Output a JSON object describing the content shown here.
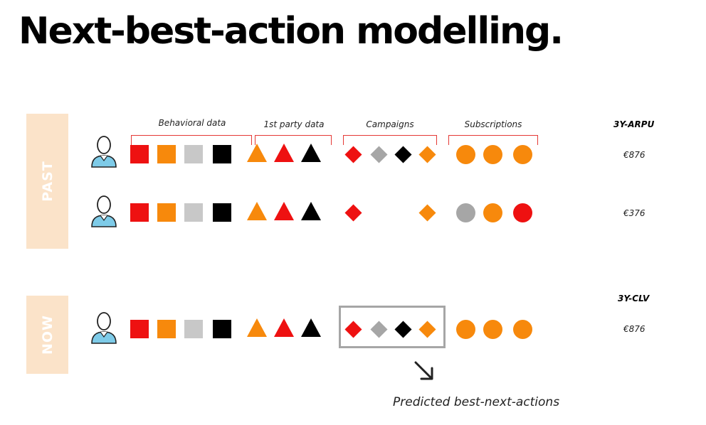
{
  "title": "Next-best-action modelling.",
  "bands": [
    {
      "label": "PAST"
    },
    {
      "label": "NOW"
    }
  ],
  "column_headers": [
    {
      "label": "Behavioral data"
    },
    {
      "label": "1st party data"
    },
    {
      "label": "Campaigns"
    },
    {
      "label": "Subscriptions"
    }
  ],
  "metric_headers": {
    "past": "3Y-ARPU",
    "now": "3Y-CLV"
  },
  "rows": [
    {
      "value": "€876",
      "behavioral": [
        "red",
        "orange",
        "lightgray",
        "black"
      ],
      "first_party": [
        "orange",
        "red",
        "black"
      ],
      "campaigns": [
        "red",
        "gray",
        "black",
        "orange"
      ],
      "subscriptions": [
        "orange",
        "orange",
        "orange"
      ]
    },
    {
      "value": "€376",
      "behavioral": [
        "red",
        "orange",
        "lightgray",
        "black"
      ],
      "first_party": [
        "orange",
        "red",
        "black"
      ],
      "campaigns": [
        "red",
        null,
        null,
        "orange"
      ],
      "subscriptions": [
        "gray",
        "orange",
        "red"
      ]
    },
    {
      "value": "€876",
      "behavioral": [
        "red",
        "orange",
        "lightgray",
        "black"
      ],
      "first_party": [
        "orange",
        "red",
        "black"
      ],
      "campaigns": [
        "red",
        "gray",
        "black",
        "orange"
      ],
      "subscriptions": [
        "orange",
        "orange",
        "orange"
      ]
    }
  ],
  "predicted_label": "Predicted best-next-actions",
  "colors": {
    "red": "#ee1111",
    "orange": "#f7890c",
    "lightgray": "#c8c8c8",
    "gray": "#a6a6a6",
    "black": "#000000",
    "band": "#fbe3c9",
    "bracket": "#e53935",
    "person_shirt": "#7ecbe8"
  },
  "icons": {
    "person": "person-icon",
    "arrow": "arrow-down-right-icon"
  }
}
